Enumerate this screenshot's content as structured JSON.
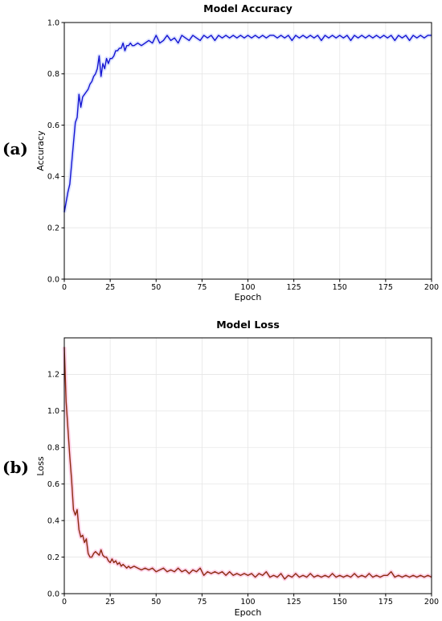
{
  "chart_data": [
    {
      "type": "line",
      "panel_label": "(a)",
      "title": "Model Accuracy",
      "xlabel": "Epoch",
      "ylabel": "Accuracy",
      "xlim": [
        0,
        200
      ],
      "ylim": [
        0.0,
        1.0
      ],
      "xticks": [
        0,
        25,
        50,
        75,
        100,
        125,
        150,
        175,
        200
      ],
      "yticks": [
        0.0,
        0.2,
        0.4,
        0.6,
        0.8,
        1.0
      ],
      "ytick_format": 1,
      "grid": true,
      "line_color": "#1414d2",
      "band_color": "#c8d2ff",
      "series": [
        {
          "points": [
            [
              0,
              0.26
            ],
            [
              1,
              0.3
            ],
            [
              2,
              0.34
            ],
            [
              3,
              0.37
            ],
            [
              4,
              0.45
            ],
            [
              5,
              0.53
            ],
            [
              6,
              0.61
            ],
            [
              7,
              0.63
            ],
            [
              8,
              0.72
            ],
            [
              9,
              0.67
            ],
            [
              10,
              0.71
            ],
            [
              11,
              0.72
            ],
            [
              12,
              0.73
            ],
            [
              13,
              0.74
            ],
            [
              14,
              0.76
            ],
            [
              15,
              0.77
            ],
            [
              16,
              0.79
            ],
            [
              17,
              0.8
            ],
            [
              18,
              0.82
            ],
            [
              19,
              0.87
            ],
            [
              20,
              0.79
            ],
            [
              21,
              0.84
            ],
            [
              22,
              0.82
            ],
            [
              23,
              0.86
            ],
            [
              24,
              0.84
            ],
            [
              25,
              0.86
            ],
            [
              26,
              0.86
            ],
            [
              27,
              0.87
            ],
            [
              28,
              0.89
            ],
            [
              29,
              0.89
            ],
            [
              30,
              0.9
            ],
            [
              31,
              0.9
            ],
            [
              32,
              0.92
            ],
            [
              33,
              0.89
            ],
            [
              34,
              0.91
            ],
            [
              35,
              0.91
            ],
            [
              36,
              0.92
            ],
            [
              37,
              0.91
            ],
            [
              38,
              0.91
            ],
            [
              40,
              0.92
            ],
            [
              42,
              0.91
            ],
            [
              44,
              0.92
            ],
            [
              46,
              0.93
            ],
            [
              48,
              0.92
            ],
            [
              50,
              0.95
            ],
            [
              52,
              0.92
            ],
            [
              54,
              0.93
            ],
            [
              56,
              0.95
            ],
            [
              58,
              0.93
            ],
            [
              60,
              0.94
            ],
            [
              62,
              0.92
            ],
            [
              64,
              0.95
            ],
            [
              66,
              0.94
            ],
            [
              68,
              0.93
            ],
            [
              70,
              0.95
            ],
            [
              72,
              0.94
            ],
            [
              74,
              0.93
            ],
            [
              76,
              0.95
            ],
            [
              78,
              0.94
            ],
            [
              80,
              0.95
            ],
            [
              82,
              0.93
            ],
            [
              84,
              0.95
            ],
            [
              86,
              0.94
            ],
            [
              88,
              0.95
            ],
            [
              90,
              0.94
            ],
            [
              92,
              0.95
            ],
            [
              94,
              0.94
            ],
            [
              96,
              0.95
            ],
            [
              98,
              0.94
            ],
            [
              100,
              0.95
            ],
            [
              102,
              0.94
            ],
            [
              104,
              0.95
            ],
            [
              106,
              0.94
            ],
            [
              108,
              0.95
            ],
            [
              110,
              0.94
            ],
            [
              112,
              0.95
            ],
            [
              114,
              0.95
            ],
            [
              116,
              0.94
            ],
            [
              118,
              0.95
            ],
            [
              120,
              0.94
            ],
            [
              122,
              0.95
            ],
            [
              124,
              0.93
            ],
            [
              126,
              0.95
            ],
            [
              128,
              0.94
            ],
            [
              130,
              0.95
            ],
            [
              132,
              0.94
            ],
            [
              134,
              0.95
            ],
            [
              136,
              0.94
            ],
            [
              138,
              0.95
            ],
            [
              140,
              0.93
            ],
            [
              142,
              0.95
            ],
            [
              144,
              0.94
            ],
            [
              146,
              0.95
            ],
            [
              148,
              0.94
            ],
            [
              150,
              0.95
            ],
            [
              152,
              0.94
            ],
            [
              154,
              0.95
            ],
            [
              156,
              0.93
            ],
            [
              158,
              0.95
            ],
            [
              160,
              0.94
            ],
            [
              162,
              0.95
            ],
            [
              164,
              0.94
            ],
            [
              166,
              0.95
            ],
            [
              168,
              0.94
            ],
            [
              170,
              0.95
            ],
            [
              172,
              0.94
            ],
            [
              174,
              0.95
            ],
            [
              176,
              0.94
            ],
            [
              178,
              0.95
            ],
            [
              180,
              0.93
            ],
            [
              182,
              0.95
            ],
            [
              184,
              0.94
            ],
            [
              186,
              0.95
            ],
            [
              188,
              0.93
            ],
            [
              190,
              0.95
            ],
            [
              192,
              0.94
            ],
            [
              194,
              0.95
            ],
            [
              196,
              0.94
            ],
            [
              198,
              0.95
            ],
            [
              200,
              0.95
            ]
          ]
        }
      ]
    },
    {
      "type": "line",
      "panel_label": "(b)",
      "title": "Model Loss",
      "xlabel": "Epoch",
      "ylabel": "Loss",
      "xlim": [
        0,
        200
      ],
      "ylim": [
        0.0,
        1.4
      ],
      "xticks": [
        0,
        25,
        50,
        75,
        100,
        125,
        150,
        175,
        200
      ],
      "yticks": [
        0.0,
        0.2,
        0.4,
        0.6,
        0.8,
        1.0,
        1.2
      ],
      "ytick_format": 1,
      "grid": true,
      "line_color": "#8b2a10",
      "band_color": "#ffb6d9",
      "series": [
        {
          "points": [
            [
              0,
              1.35
            ],
            [
              1,
              1.05
            ],
            [
              2,
              0.9
            ],
            [
              3,
              0.75
            ],
            [
              4,
              0.62
            ],
            [
              5,
              0.46
            ],
            [
              6,
              0.43
            ],
            [
              7,
              0.46
            ],
            [
              8,
              0.35
            ],
            [
              9,
              0.31
            ],
            [
              10,
              0.32
            ],
            [
              11,
              0.28
            ],
            [
              12,
              0.3
            ],
            [
              13,
              0.22
            ],
            [
              14,
              0.2
            ],
            [
              15,
              0.2
            ],
            [
              16,
              0.22
            ],
            [
              17,
              0.23
            ],
            [
              18,
              0.22
            ],
            [
              19,
              0.21
            ],
            [
              20,
              0.24
            ],
            [
              21,
              0.21
            ],
            [
              22,
              0.2
            ],
            [
              23,
              0.2
            ],
            [
              24,
              0.18
            ],
            [
              25,
              0.17
            ],
            [
              26,
              0.19
            ],
            [
              27,
              0.17
            ],
            [
              28,
              0.18
            ],
            [
              29,
              0.16
            ],
            [
              30,
              0.17
            ],
            [
              31,
              0.15
            ],
            [
              32,
              0.16
            ],
            [
              33,
              0.15
            ],
            [
              34,
              0.14
            ],
            [
              35,
              0.15
            ],
            [
              36,
              0.14
            ],
            [
              38,
              0.15
            ],
            [
              40,
              0.14
            ],
            [
              42,
              0.13
            ],
            [
              44,
              0.14
            ],
            [
              46,
              0.13
            ],
            [
              48,
              0.14
            ],
            [
              50,
              0.12
            ],
            [
              52,
              0.13
            ],
            [
              54,
              0.14
            ],
            [
              56,
              0.12
            ],
            [
              58,
              0.13
            ],
            [
              60,
              0.12
            ],
            [
              62,
              0.14
            ],
            [
              64,
              0.12
            ],
            [
              66,
              0.13
            ],
            [
              68,
              0.11
            ],
            [
              70,
              0.13
            ],
            [
              72,
              0.12
            ],
            [
              74,
              0.14
            ],
            [
              76,
              0.1
            ],
            [
              78,
              0.12
            ],
            [
              80,
              0.11
            ],
            [
              82,
              0.12
            ],
            [
              84,
              0.11
            ],
            [
              86,
              0.12
            ],
            [
              88,
              0.1
            ],
            [
              90,
              0.12
            ],
            [
              92,
              0.1
            ],
            [
              94,
              0.11
            ],
            [
              96,
              0.1
            ],
            [
              98,
              0.11
            ],
            [
              100,
              0.1
            ],
            [
              102,
              0.11
            ],
            [
              104,
              0.09
            ],
            [
              106,
              0.11
            ],
            [
              108,
              0.1
            ],
            [
              110,
              0.12
            ],
            [
              112,
              0.09
            ],
            [
              114,
              0.1
            ],
            [
              116,
              0.09
            ],
            [
              118,
              0.11
            ],
            [
              120,
              0.08
            ],
            [
              122,
              0.1
            ],
            [
              124,
              0.09
            ],
            [
              126,
              0.11
            ],
            [
              128,
              0.09
            ],
            [
              130,
              0.1
            ],
            [
              132,
              0.09
            ],
            [
              134,
              0.11
            ],
            [
              136,
              0.09
            ],
            [
              138,
              0.1
            ],
            [
              140,
              0.09
            ],
            [
              142,
              0.1
            ],
            [
              144,
              0.09
            ],
            [
              146,
              0.11
            ],
            [
              148,
              0.09
            ],
            [
              150,
              0.1
            ],
            [
              152,
              0.09
            ],
            [
              154,
              0.1
            ],
            [
              156,
              0.09
            ],
            [
              158,
              0.11
            ],
            [
              160,
              0.09
            ],
            [
              162,
              0.1
            ],
            [
              164,
              0.09
            ],
            [
              166,
              0.11
            ],
            [
              168,
              0.09
            ],
            [
              170,
              0.1
            ],
            [
              172,
              0.09
            ],
            [
              174,
              0.1
            ],
            [
              176,
              0.1
            ],
            [
              178,
              0.12
            ],
            [
              180,
              0.09
            ],
            [
              182,
              0.1
            ],
            [
              184,
              0.09
            ],
            [
              186,
              0.1
            ],
            [
              188,
              0.09
            ],
            [
              190,
              0.1
            ],
            [
              192,
              0.09
            ],
            [
              194,
              0.1
            ],
            [
              196,
              0.09
            ],
            [
              198,
              0.1
            ],
            [
              200,
              0.09
            ]
          ]
        }
      ]
    }
  ]
}
